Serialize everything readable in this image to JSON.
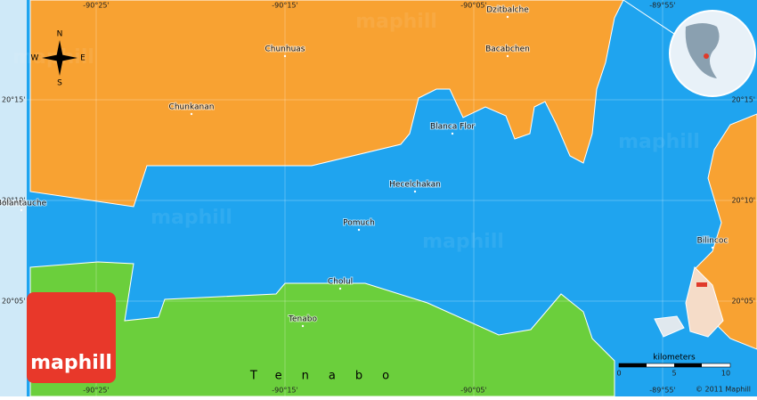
{
  "map": {
    "top_labels": [
      "-90°25'",
      "-90°15'",
      "-90°05'",
      "-89°55'"
    ],
    "bottom_labels": [
      "-90°25'",
      "-90°15'",
      "-90°05'",
      "-89°55'"
    ],
    "left_labels": [
      "20°15'",
      "20°10'",
      "20°05'"
    ],
    "right_labels": [
      "20°15'",
      "20°10'",
      "20°05'"
    ],
    "places": [
      "Dzitbalche",
      "Chunhuas",
      "Bacabchen",
      "Chunkanan",
      "Blanca Flor",
      "Hecelchakan",
      "Bolantauche",
      "Pomuch",
      "Bilincoc",
      "Cholul",
      "Tenabo"
    ],
    "region_label": "Tenabo",
    "compass": {
      "n": "N",
      "s": "S",
      "e": "E",
      "w": "W"
    },
    "logo": "maphill",
    "scale": {
      "title": "kilometers",
      "ticks": [
        "0",
        "5",
        "10"
      ]
    },
    "copyright": "© 2011 Maphill"
  }
}
